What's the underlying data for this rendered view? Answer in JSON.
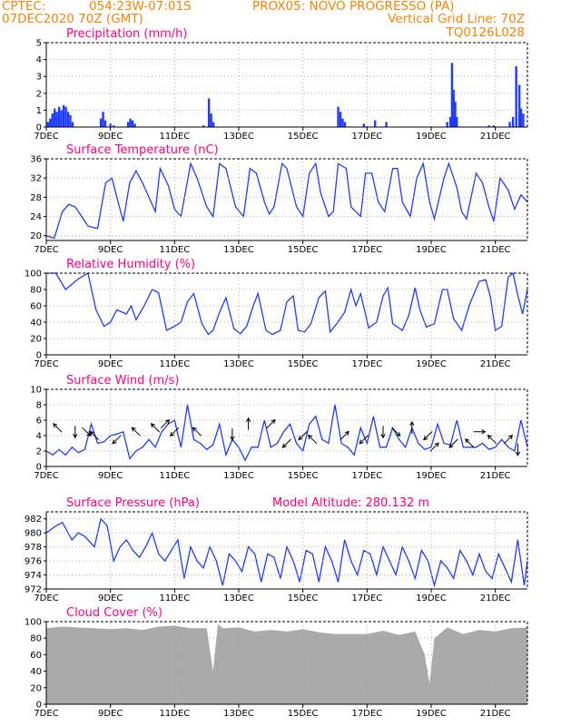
{
  "header": {
    "source": "CPTEC:",
    "coords": "054:23W-07:01S",
    "station": "PROX05: NOVO PROGRESSO (PA)",
    "run": "07DEC2020 70Z (GMT)",
    "grid_note": "Vertical Grid Line: 70Z",
    "model_code": "TQ0126L028"
  },
  "colors": {
    "header": "#ff8000",
    "title": "#ff0080",
    "line": "#1e3cff",
    "bar": "#1e3cff",
    "cloud": "#aaaaaa",
    "grid": "#999999"
  },
  "x_axis": {
    "tick_labels": [
      "7DEC",
      "9DEC",
      "11DEC",
      "13DEC",
      "15DEC",
      "17DEC",
      "19DEC",
      "21DEC"
    ],
    "tick_days": [
      7,
      9,
      11,
      13,
      15,
      17,
      19,
      21
    ],
    "range_days": [
      7,
      22
    ]
  },
  "chart_data": [
    {
      "id": "precip",
      "type": "bar",
      "title": "Precipitation (mm/h)",
      "ylim": [
        0,
        5
      ],
      "yticks": [
        0,
        1,
        2,
        3,
        4,
        5
      ],
      "x": [
        7.05,
        7.12,
        7.19,
        7.26,
        7.33,
        7.4,
        7.47,
        7.54,
        7.61,
        7.68,
        7.75,
        7.82,
        8.7,
        8.77,
        8.84,
        9.0,
        9.1,
        9.55,
        9.62,
        9.69,
        9.76,
        11.9,
        12.07,
        12.14,
        12.21,
        16.1,
        16.17,
        16.24,
        16.31,
        16.9,
        17.25,
        17.6,
        19.5,
        19.6,
        19.65,
        19.7,
        19.75,
        19.8,
        20.8,
        20.95,
        21.45,
        21.55,
        21.65,
        21.75,
        21.8,
        21.87
      ],
      "values": [
        0.3,
        0.5,
        0.8,
        1.1,
        0.9,
        1.2,
        1.0,
        1.3,
        1.2,
        0.9,
        0.7,
        0.3,
        0.5,
        0.9,
        0.4,
        0.2,
        0.1,
        0.3,
        0.5,
        0.4,
        0.2,
        0.1,
        1.7,
        0.8,
        0.3,
        1.2,
        0.9,
        0.5,
        0.3,
        0.2,
        0.4,
        0.3,
        0.3,
        0.6,
        3.8,
        2.2,
        1.5,
        0.6,
        0.1,
        0.1,
        0.3,
        0.6,
        3.6,
        2.5,
        1.1,
        0.8
      ]
    },
    {
      "id": "temp",
      "type": "line",
      "title": "Surface Temperature (nC)",
      "ylim": [
        19,
        36
      ],
      "yticks": [
        20,
        24,
        28,
        32,
        36
      ],
      "x": [
        7.0,
        7.25,
        7.5,
        7.7,
        7.9,
        8.1,
        8.3,
        8.6,
        8.85,
        9.05,
        9.2,
        9.4,
        9.6,
        9.8,
        10.0,
        10.2,
        10.4,
        10.55,
        10.8,
        11.0,
        11.2,
        11.5,
        11.7,
        12.0,
        12.2,
        12.4,
        12.6,
        12.75,
        12.9,
        13.15,
        13.35,
        13.55,
        13.8,
        13.95,
        14.1,
        14.35,
        14.5,
        14.8,
        15.0,
        15.2,
        15.4,
        15.55,
        15.8,
        15.95,
        16.1,
        16.35,
        16.5,
        16.8,
        16.95,
        17.15,
        17.35,
        17.55,
        17.8,
        17.95,
        18.1,
        18.35,
        18.55,
        18.75,
        18.95,
        19.1,
        19.4,
        19.55,
        19.8,
        19.95,
        20.1,
        20.4,
        20.6,
        20.8,
        20.95,
        21.15,
        21.4,
        21.6,
        21.8,
        22.0
      ],
      "values": [
        20,
        19.5,
        25,
        26.5,
        26,
        24,
        22,
        21.5,
        31,
        32,
        28,
        23,
        31,
        33.5,
        31,
        28,
        25,
        34,
        30.5,
        25.5,
        24,
        35,
        32,
        26,
        24,
        35,
        34,
        30,
        26,
        24,
        34,
        33,
        27,
        24.5,
        26,
        35,
        34,
        26,
        24,
        33,
        35,
        29,
        24,
        25,
        35,
        34,
        26,
        24,
        33,
        33,
        27,
        25,
        34,
        34,
        27,
        24,
        32,
        35,
        27,
        23.5,
        32,
        35,
        30,
        25,
        23.5,
        33,
        31,
        26,
        23,
        32,
        29.5,
        25.5,
        28.5,
        27
      ]
    },
    {
      "id": "rh",
      "type": "line",
      "title": "Relative Humidity (%)",
      "ylim": [
        0,
        100
      ],
      "yticks": [
        0,
        20,
        40,
        60,
        80,
        100
      ],
      "x": [
        7.0,
        7.3,
        7.6,
        8.0,
        8.3,
        8.55,
        8.8,
        9.0,
        9.2,
        9.5,
        9.65,
        9.8,
        10.05,
        10.3,
        10.5,
        10.75,
        11.0,
        11.2,
        11.4,
        11.6,
        11.85,
        12.05,
        12.2,
        12.4,
        12.6,
        12.85,
        13.05,
        13.25,
        13.45,
        13.6,
        13.85,
        14.05,
        14.3,
        14.5,
        14.7,
        14.85,
        15.05,
        15.25,
        15.5,
        15.7,
        15.85,
        16.05,
        16.3,
        16.5,
        16.65,
        16.8,
        17.05,
        17.3,
        17.5,
        17.65,
        17.8,
        18.1,
        18.3,
        18.5,
        18.65,
        18.85,
        19.1,
        19.35,
        19.5,
        19.7,
        19.95,
        20.2,
        20.5,
        20.7,
        20.85,
        21.0,
        21.2,
        21.4,
        21.55,
        21.7,
        21.85,
        22.0
      ],
      "values": [
        100,
        100,
        80,
        93,
        100,
        55,
        35,
        40,
        55,
        50,
        60,
        43,
        60,
        80,
        76,
        30,
        35,
        40,
        65,
        75,
        38,
        25,
        30,
        52,
        70,
        32,
        26,
        35,
        60,
        75,
        30,
        25,
        30,
        65,
        72,
        30,
        28,
        38,
        70,
        78,
        28,
        38,
        52,
        80,
        60,
        75,
        33,
        40,
        72,
        82,
        38,
        30,
        48,
        82,
        55,
        34,
        38,
        80,
        80,
        44,
        30,
        62,
        90,
        92,
        70,
        30,
        35,
        95,
        100,
        73,
        50,
        80
      ]
    },
    {
      "id": "wind",
      "type": "line",
      "title": "Surface Wind (m/s)",
      "ylim": [
        0,
        10
      ],
      "yticks": [
        0,
        2,
        4,
        6,
        8,
        10
      ],
      "x": [
        7.0,
        7.2,
        7.4,
        7.6,
        7.8,
        8.0,
        8.2,
        8.4,
        8.6,
        8.8,
        9.0,
        9.2,
        9.4,
        9.6,
        9.8,
        10.0,
        10.2,
        10.4,
        10.6,
        10.8,
        11.0,
        11.2,
        11.4,
        11.6,
        11.8,
        12.0,
        12.2,
        12.4,
        12.6,
        12.8,
        13.0,
        13.2,
        13.4,
        13.6,
        13.8,
        14.0,
        14.2,
        14.4,
        14.6,
        14.8,
        15.0,
        15.2,
        15.4,
        15.6,
        15.8,
        16.0,
        16.2,
        16.4,
        16.6,
        16.8,
        17.0,
        17.2,
        17.4,
        17.6,
        17.8,
        18.0,
        18.2,
        18.4,
        18.6,
        18.8,
        19.0,
        19.2,
        19.4,
        19.6,
        19.8,
        20.0,
        20.2,
        20.4,
        20.6,
        20.8,
        21.0,
        21.2,
        21.4,
        21.6,
        21.8,
        22.0
      ],
      "values": [
        2,
        1.5,
        2.2,
        1.5,
        2.5,
        1.8,
        2.2,
        5.5,
        3,
        3.2,
        4,
        4.2,
        4.5,
        1,
        2,
        2.5,
        3.5,
        2.5,
        4.5,
        5.5,
        6,
        2.5,
        8,
        3.5,
        3,
        2.2,
        2.8,
        5.5,
        1.5,
        3.5,
        2.5,
        0.8,
        2.5,
        2.5,
        6,
        2.5,
        3,
        4.5,
        5.5,
        3,
        2,
        5.5,
        6.5,
        3.5,
        3,
        8,
        3,
        2.5,
        1.5,
        5,
        3,
        6.5,
        2.5,
        2.5,
        5,
        3.5,
        2.5,
        5,
        3,
        2.2,
        2.5,
        5.5,
        3,
        2.8,
        6,
        2.5,
        2.5,
        2.5,
        3,
        2.2,
        2.5,
        3.5,
        2.5,
        2,
        6,
        2.5
      ]
    },
    {
      "id": "press",
      "type": "line",
      "title": "Surface Pressure (hPa)",
      "annotation": "Model Altitude: 280.132 m",
      "ylim": [
        972,
        983
      ],
      "yticks": [
        972,
        974,
        976,
        978,
        980,
        982
      ],
      "x": [
        7.0,
        7.3,
        7.5,
        7.8,
        8.0,
        8.2,
        8.5,
        8.7,
        8.9,
        9.1,
        9.3,
        9.5,
        9.7,
        9.9,
        10.1,
        10.3,
        10.5,
        10.7,
        10.9,
        11.1,
        11.3,
        11.5,
        11.7,
        11.9,
        12.1,
        12.3,
        12.5,
        12.7,
        12.9,
        13.1,
        13.3,
        13.5,
        13.7,
        13.9,
        14.1,
        14.3,
        14.5,
        14.7,
        14.9,
        15.1,
        15.3,
        15.5,
        15.7,
        15.9,
        16.1,
        16.3,
        16.5,
        16.7,
        16.9,
        17.1,
        17.3,
        17.5,
        17.7,
        17.9,
        18.1,
        18.3,
        18.5,
        18.7,
        18.9,
        19.1,
        19.3,
        19.5,
        19.7,
        19.9,
        20.1,
        20.3,
        20.5,
        20.7,
        20.9,
        21.1,
        21.3,
        21.5,
        21.7,
        21.9,
        22.0
      ],
      "values": [
        980,
        981,
        981.5,
        979,
        980,
        979.5,
        978,
        982,
        981,
        976,
        978,
        979,
        977.5,
        976.5,
        978,
        980,
        977,
        976,
        977.5,
        979,
        973.5,
        978,
        976,
        975,
        978,
        976,
        972.5,
        977,
        976,
        974.5,
        978,
        977,
        973,
        977,
        976.5,
        973.5,
        978,
        976,
        973,
        977.5,
        977,
        973,
        978,
        976,
        973,
        979,
        976,
        974,
        977.5,
        977,
        974,
        978,
        976,
        974,
        978,
        976,
        973.5,
        977.5,
        976,
        972.5,
        976,
        975,
        973.5,
        977.5,
        976,
        974,
        977,
        974.5,
        973.5,
        977,
        975,
        973,
        979,
        972.5,
        976
      ]
    },
    {
      "id": "cloud",
      "type": "area",
      "title": "Cloud Cover (%)",
      "ylim": [
        0,
        100
      ],
      "yticks": [
        0,
        20,
        40,
        60,
        80,
        100
      ],
      "x": [
        7.0,
        7.5,
        8.0,
        8.5,
        9.0,
        9.5,
        10.0,
        10.5,
        11.0,
        11.5,
        12.0,
        12.2,
        12.35,
        12.5,
        13.0,
        13.5,
        14.0,
        14.5,
        15.0,
        15.5,
        16.0,
        16.5,
        17.0,
        17.5,
        18.0,
        18.5,
        18.8,
        18.95,
        19.1,
        19.5,
        20.0,
        20.5,
        21.0,
        21.5,
        22.0
      ],
      "values": [
        92,
        94,
        93,
        92,
        91,
        92,
        90,
        94,
        95,
        92,
        92,
        40,
        97,
        92,
        93,
        88,
        90,
        88,
        91,
        87,
        85,
        85,
        85,
        89,
        84,
        88,
        60,
        25,
        80,
        93,
        85,
        90,
        88,
        92,
        93
      ]
    }
  ]
}
